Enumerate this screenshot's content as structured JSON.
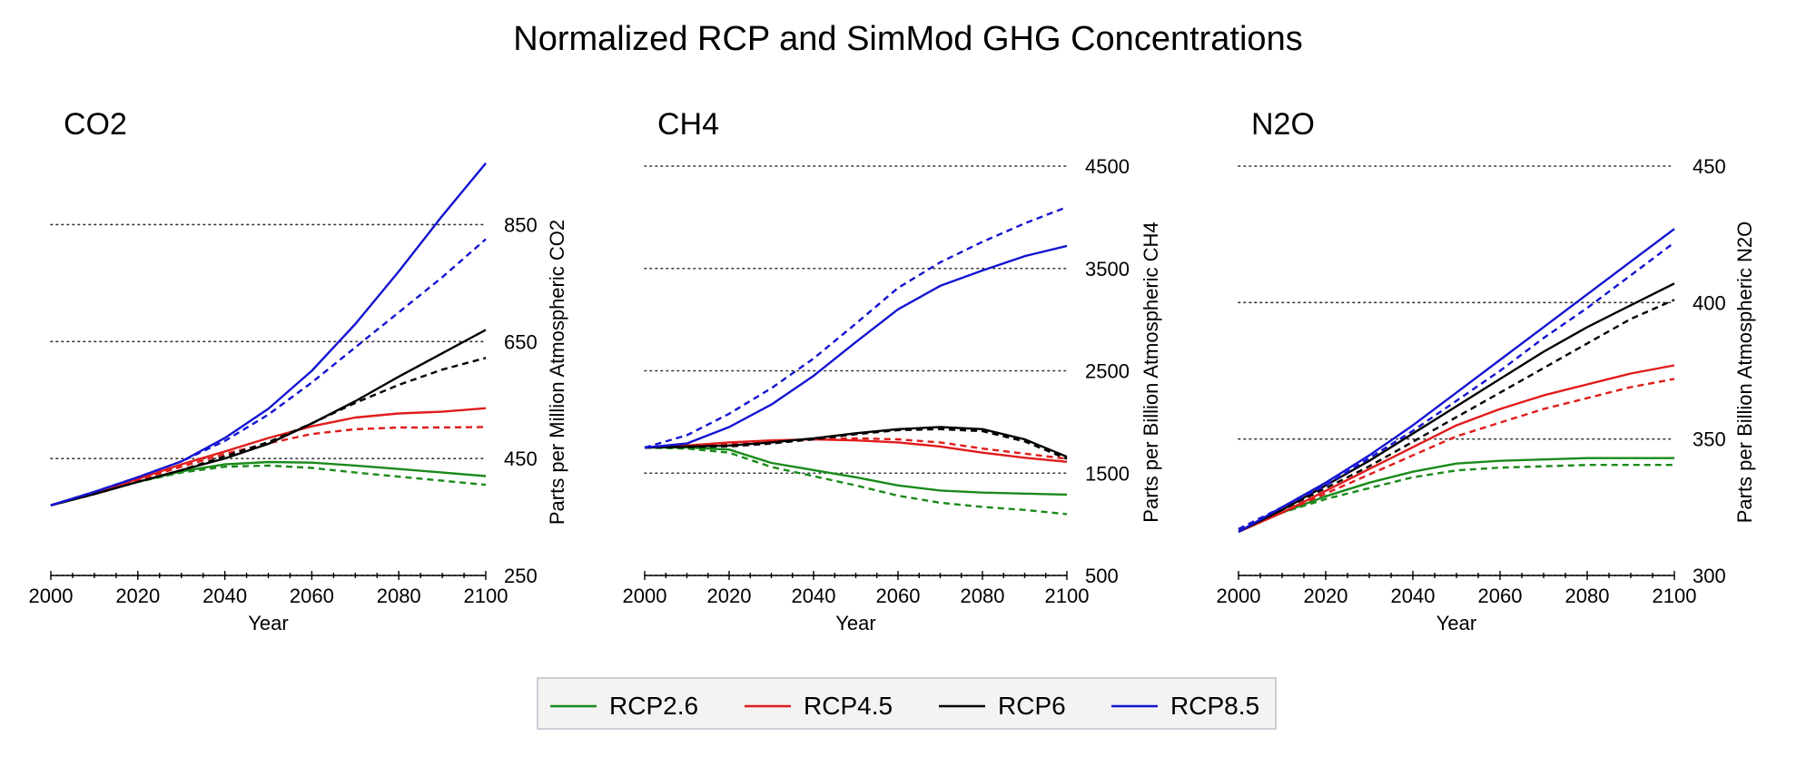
{
  "title": "Normalized RCP and SimMod GHG Concentrations",
  "legend": {
    "items": [
      {
        "label": "RCP2.6",
        "color": "#1a8a1a"
      },
      {
        "label": "RCP4.5",
        "color": "#e01b1b"
      },
      {
        "label": "RCP6",
        "color": "#000000"
      },
      {
        "label": "RCP8.5",
        "color": "#1414d2"
      }
    ]
  },
  "chart_data": [
    {
      "type": "line",
      "title": "CO2",
      "xlabel": "Year",
      "ylabel": "Parts per Million Atmospheric CO2",
      "xlim": [
        2000,
        2100
      ],
      "ylim": [
        250,
        950
      ],
      "xticks": [
        2000,
        2020,
        2040,
        2060,
        2080,
        2100
      ],
      "yticks": [
        250,
        450,
        650,
        850
      ],
      "x": [
        2000,
        2010,
        2020,
        2030,
        2040,
        2050,
        2060,
        2070,
        2080,
        2090,
        2100
      ],
      "grid": "horizontal dotted",
      "y_axis_side": "right",
      "series": [
        {
          "name": "RCP2.6",
          "style": "solid",
          "color": "#1a8a1a",
          "values": [
            370,
            390,
            410,
            428,
            440,
            444,
            443,
            438,
            432,
            426,
            420
          ]
        },
        {
          "name": "RCP2.6",
          "style": "dashed",
          "color": "#1a8a1a",
          "values": [
            370,
            390,
            410,
            426,
            436,
            438,
            434,
            426,
            419,
            412,
            405
          ]
        },
        {
          "name": "RCP4.5",
          "style": "solid",
          "color": "#e01b1b",
          "values": [
            370,
            392,
            415,
            440,
            462,
            485,
            505,
            520,
            527,
            530,
            536
          ]
        },
        {
          "name": "RCP4.5",
          "style": "dashed",
          "color": "#e01b1b",
          "values": [
            370,
            391,
            413,
            436,
            458,
            476,
            492,
            500,
            503,
            503,
            504
          ]
        },
        {
          "name": "RCP6",
          "style": "solid",
          "color": "#000000",
          "values": [
            370,
            389,
            410,
            430,
            450,
            475,
            510,
            548,
            590,
            630,
            670
          ]
        },
        {
          "name": "RCP6",
          "style": "dashed",
          "color": "#000000",
          "values": [
            370,
            389,
            410,
            430,
            454,
            478,
            510,
            545,
            576,
            602,
            622
          ]
        },
        {
          "name": "RCP8.5",
          "style": "solid",
          "color": "#1414d2",
          "values": [
            370,
            393,
            418,
            445,
            485,
            535,
            600,
            680,
            770,
            865,
            955
          ]
        },
        {
          "name": "RCP8.5",
          "style": "dashed",
          "color": "#1414d2",
          "values": [
            370,
            393,
            418,
            445,
            480,
            525,
            580,
            640,
            700,
            760,
            825
          ]
        }
      ]
    },
    {
      "type": "line",
      "title": "CH4",
      "xlabel": "Year",
      "ylabel": "Parts per Billion Atmospheric CH4",
      "xlim": [
        2000,
        2100
      ],
      "ylim": [
        500,
        4500
      ],
      "xticks": [
        2000,
        2020,
        2040,
        2060,
        2080,
        2100
      ],
      "yticks": [
        500,
        1500,
        2500,
        3500,
        4500
      ],
      "x": [
        2000,
        2010,
        2020,
        2030,
        2040,
        2050,
        2060,
        2070,
        2080,
        2090,
        2100
      ],
      "grid": "horizontal dotted",
      "y_axis_side": "right",
      "series": [
        {
          "name": "RCP2.6",
          "style": "solid",
          "color": "#1a8a1a",
          "values": [
            1750,
            1750,
            1730,
            1600,
            1530,
            1460,
            1380,
            1330,
            1310,
            1300,
            1290
          ]
        },
        {
          "name": "RCP2.6",
          "style": "dashed",
          "color": "#1a8a1a",
          "values": [
            1750,
            1740,
            1700,
            1560,
            1470,
            1380,
            1280,
            1210,
            1170,
            1140,
            1100
          ]
        },
        {
          "name": "RCP4.5",
          "style": "solid",
          "color": "#e01b1b",
          "values": [
            1750,
            1770,
            1800,
            1820,
            1830,
            1820,
            1800,
            1760,
            1700,
            1650,
            1610
          ]
        },
        {
          "name": "RCP4.5",
          "style": "dashed",
          "color": "#e01b1b",
          "values": [
            1750,
            1760,
            1790,
            1810,
            1830,
            1840,
            1830,
            1800,
            1740,
            1690,
            1640
          ]
        },
        {
          "name": "RCP6",
          "style": "solid",
          "color": "#000000",
          "values": [
            1750,
            1760,
            1770,
            1800,
            1840,
            1890,
            1930,
            1950,
            1930,
            1830,
            1660
          ]
        },
        {
          "name": "RCP6",
          "style": "dashed",
          "color": "#000000",
          "values": [
            1750,
            1755,
            1760,
            1790,
            1830,
            1880,
            1920,
            1930,
            1910,
            1810,
            1640
          ]
        },
        {
          "name": "RCP8.5",
          "style": "solid",
          "color": "#1414d2",
          "values": [
            1750,
            1790,
            1950,
            2170,
            2450,
            2780,
            3100,
            3330,
            3480,
            3620,
            3720
          ]
        },
        {
          "name": "RCP8.5",
          "style": "dashed",
          "color": "#1414d2",
          "values": [
            1750,
            1870,
            2080,
            2330,
            2620,
            2960,
            3310,
            3560,
            3760,
            3940,
            4100
          ]
        }
      ]
    },
    {
      "type": "line",
      "title": "N2O",
      "xlabel": "Year",
      "ylabel": "Parts per Billion Atmospheric N2O",
      "xlim": [
        2000,
        2100
      ],
      "ylim": [
        300,
        450
      ],
      "xticks": [
        2000,
        2020,
        2040,
        2060,
        2080,
        2100
      ],
      "yticks": [
        300,
        350,
        400,
        450
      ],
      "x": [
        2000,
        2010,
        2020,
        2030,
        2040,
        2050,
        2060,
        2070,
        2080,
        2090,
        2100
      ],
      "grid": "horizontal dotted",
      "y_axis_side": "right",
      "series": [
        {
          "name": "RCP2.6",
          "style": "solid",
          "color": "#1a8a1a",
          "values": [
            316,
            323,
            329,
            334,
            338,
            341,
            342,
            342.5,
            343,
            343,
            343
          ]
        },
        {
          "name": "RCP2.6",
          "style": "dashed",
          "color": "#1a8a1a",
          "values": [
            317,
            323,
            328,
            332,
            336,
            338.5,
            339.5,
            340,
            340.5,
            340.5,
            340.5
          ]
        },
        {
          "name": "RCP4.5",
          "style": "solid",
          "color": "#e01b1b",
          "values": [
            316,
            323,
            331,
            339,
            347,
            355,
            361,
            366,
            370,
            374,
            377
          ]
        },
        {
          "name": "RCP4.5",
          "style": "dashed",
          "color": "#e01b1b",
          "values": [
            317,
            323,
            330,
            337,
            344,
            351,
            356,
            361,
            365,
            369,
            372
          ]
        },
        {
          "name": "RCP6",
          "style": "solid",
          "color": "#000000",
          "values": [
            316,
            324,
            333,
            342,
            352,
            362,
            372,
            382,
            391,
            399,
            407
          ]
        },
        {
          "name": "RCP6",
          "style": "dashed",
          "color": "#000000",
          "values": [
            317,
            324,
            332,
            340,
            349,
            358,
            367,
            376,
            385,
            394,
            401
          ]
        },
        {
          "name": "RCP8.5",
          "style": "solid",
          "color": "#1414d2",
          "values": [
            316,
            325,
            334,
            344,
            355,
            367,
            379,
            391,
            403,
            415,
            427
          ]
        },
        {
          "name": "RCP8.5",
          "style": "dashed",
          "color": "#1414d2",
          "values": [
            317,
            325,
            333,
            343,
            353,
            364,
            375,
            387,
            398,
            410,
            422
          ]
        }
      ]
    }
  ]
}
